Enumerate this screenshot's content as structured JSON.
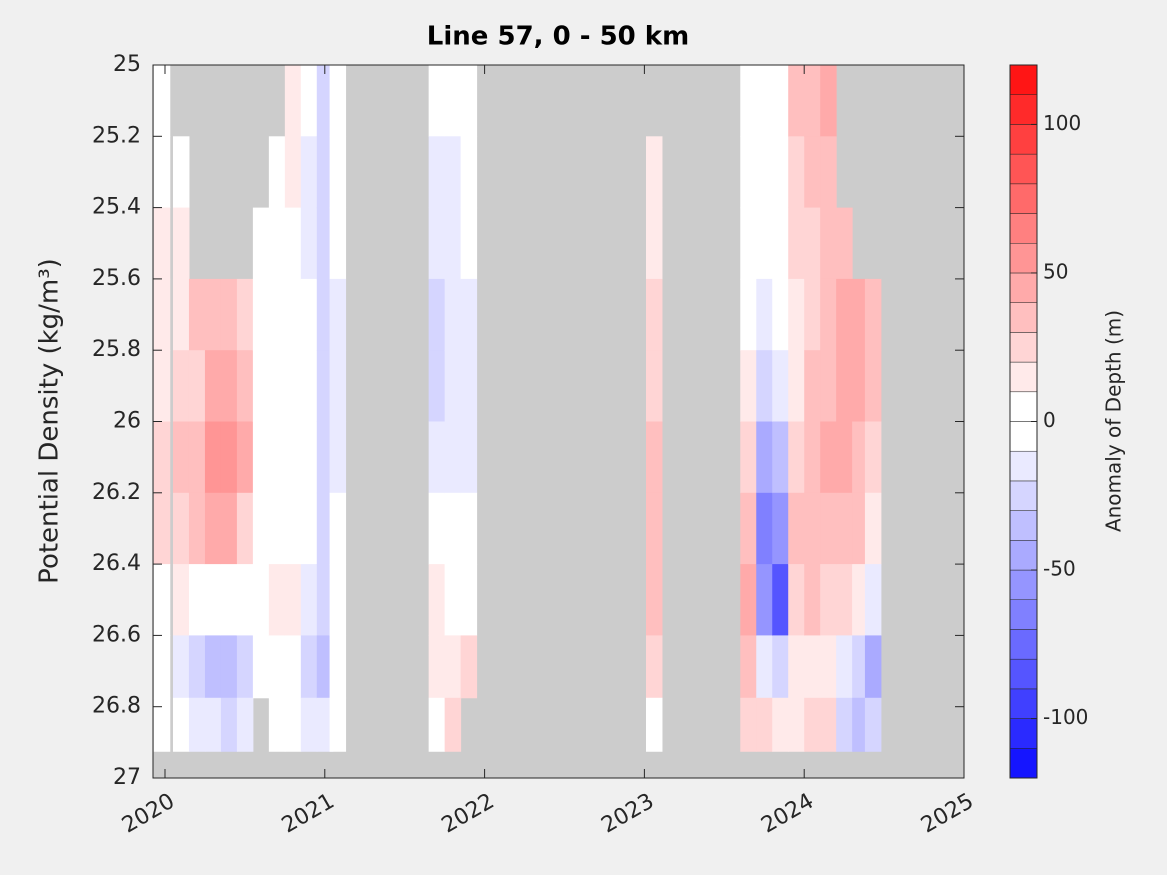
{
  "chart_data": {
    "type": "contour",
    "title": "Line 57, 0 - 50 km",
    "ylabel": "Potential Density (kg/m³)",
    "colorbar_label": "Anomaly of Depth (m)",
    "xlim": [
      2019.925,
      2025
    ],
    "xticks": [
      2020,
      2021,
      2022,
      2023,
      2024,
      2025
    ],
    "ylim": [
      25,
      27
    ],
    "yticks": [
      25,
      25.2,
      25.4,
      25.6,
      25.8,
      26,
      26.2,
      26.4,
      26.6,
      26.8,
      27
    ],
    "y_reversed": true,
    "clim": [
      -120,
      120
    ],
    "cticks": [
      -100,
      -50,
      0,
      50,
      100
    ],
    "missing_color": "#cccccc",
    "x": [
      2019.98,
      2020.1,
      2020.2,
      2020.3,
      2020.4,
      2020.5,
      2020.6,
      2020.7,
      2020.8,
      2020.9,
      2021.0,
      2021.08,
      2021.7,
      2021.8,
      2021.9,
      2023.06,
      2023.65,
      2023.75,
      2023.85,
      2023.95,
      2024.05,
      2024.15,
      2024.25,
      2024.35,
      2024.43
    ],
    "y": [
      25.1,
      25.3,
      25.5,
      25.7,
      25.9,
      26.1,
      26.3,
      26.5,
      26.7,
      26.85
    ],
    "z": [
      [
        0,
        5,
        12,
        15,
        18,
        25,
        20,
        5,
        -5,
        0
      ],
      [
        null,
        8,
        10,
        15,
        20,
        30,
        25,
        10,
        -10,
        0
      ],
      [
        null,
        null,
        null,
        30,
        25,
        30,
        30,
        -5,
        -20,
        -10
      ],
      [
        null,
        null,
        null,
        35,
        40,
        50,
        40,
        -5,
        -30,
        -15
      ],
      [
        null,
        null,
        null,
        30,
        45,
        55,
        40,
        -5,
        -35,
        -20
      ],
      [
        null,
        null,
        null,
        20,
        35,
        40,
        25,
        0,
        -20,
        -10
      ],
      [
        null,
        null,
        5,
        5,
        5,
        5,
        0,
        0,
        5,
        null
      ],
      [
        null,
        5,
        5,
        0,
        0,
        0,
        5,
        10,
        5,
        5
      ],
      [
        10,
        10,
        5,
        0,
        0,
        0,
        5,
        10,
        0,
        5
      ],
      [
        0,
        -10,
        -10,
        -5,
        0,
        0,
        -5,
        -15,
        -20,
        -10
      ],
      [
        -20,
        -25,
        -25,
        -20,
        -25,
        -25,
        -20,
        -20,
        -30,
        -10
      ],
      [
        -5,
        -5,
        -5,
        -10,
        -10,
        -10,
        0,
        5,
        -5,
        0
      ],
      [
        -5,
        -10,
        -15,
        -20,
        -20,
        -10,
        5,
        10,
        10,
        5
      ],
      [
        0,
        -10,
        -10,
        -15,
        -15,
        -10,
        -5,
        0,
        10,
        20
      ],
      [
        5,
        0,
        -5,
        -10,
        -10,
        -10,
        -5,
        5,
        20,
        null
      ],
      [
        null,
        10,
        15,
        20,
        25,
        30,
        35,
        30,
        20,
        5
      ],
      [
        0,
        0,
        0,
        5,
        10,
        20,
        30,
        40,
        35,
        20
      ],
      [
        5,
        5,
        0,
        -10,
        -20,
        -40,
        -60,
        -50,
        -10,
        20
      ],
      [
        5,
        5,
        0,
        -5,
        -15,
        -30,
        -50,
        -80,
        -20,
        15
      ],
      [
        30,
        25,
        20,
        15,
        15,
        20,
        30,
        20,
        10,
        10
      ],
      [
        35,
        30,
        25,
        25,
        30,
        35,
        35,
        30,
        15,
        20
      ],
      [
        40,
        35,
        30,
        30,
        35,
        40,
        35,
        25,
        15,
        20
      ],
      [
        null,
        null,
        30,
        45,
        45,
        40,
        35,
        20,
        -10,
        -20
      ],
      [
        null,
        null,
        null,
        40,
        40,
        35,
        30,
        10,
        -25,
        -30
      ],
      [
        null,
        null,
        null,
        30,
        30,
        25,
        15,
        -10,
        -40,
        -20
      ]
    ]
  }
}
